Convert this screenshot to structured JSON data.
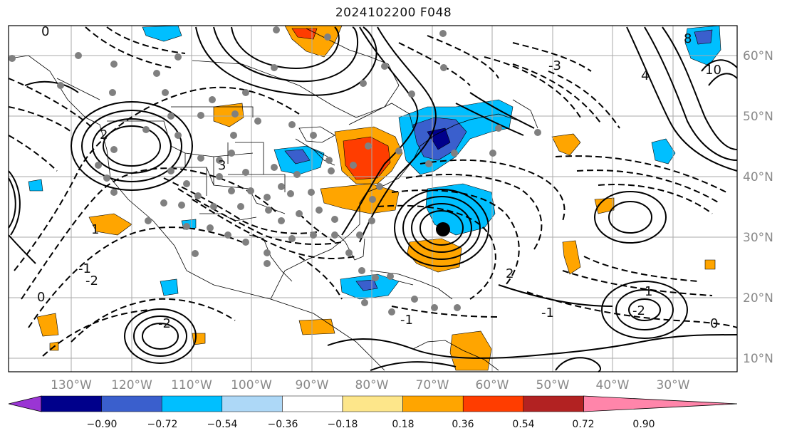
{
  "title": "2024102200 F048",
  "map": {
    "lon_ticks": [
      "130°W",
      "120°W",
      "110°W",
      "100°W",
      "90°W",
      "80°W",
      "70°W",
      "60°W",
      "50°W",
      "40°W",
      "30°W"
    ],
    "lat_ticks": [
      "60°N",
      "50°N",
      "40°N",
      "30°N",
      "20°N",
      "10°N"
    ],
    "contour_labels": [
      "0",
      "2",
      "-1",
      "-2",
      "1",
      "3",
      "-3",
      "4",
      "8",
      "10",
      "0",
      "-2",
      "-1",
      "1",
      "2",
      "-2",
      "-1",
      "0"
    ]
  },
  "colorbar": {
    "ticks": [
      "−0.90",
      "−0.72",
      "−0.54",
      "−0.36",
      "−0.18",
      "0.18",
      "0.36",
      "0.54",
      "0.72",
      "0.90"
    ],
    "colors": [
      "#9a35d4",
      "#00008b",
      "#3a5fcd",
      "#00bfff",
      "#add8f7",
      "#ffffff",
      "#fde68a",
      "#ffa500",
      "#ff3d00",
      "#b22222",
      "#ff85aa"
    ]
  }
}
